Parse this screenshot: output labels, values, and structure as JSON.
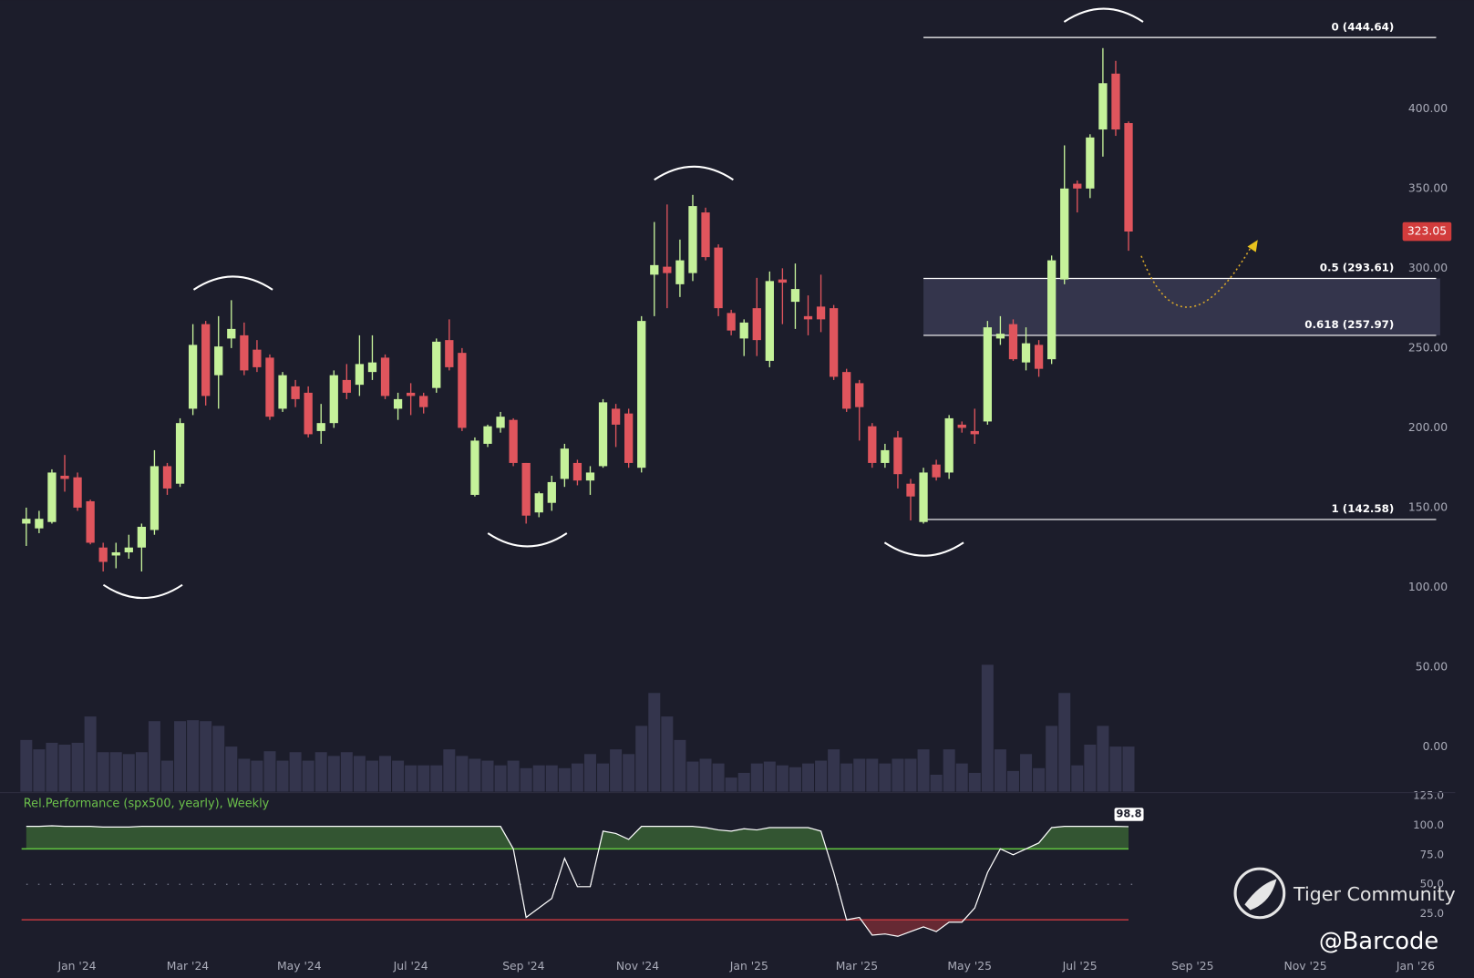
{
  "chart_data": [
    {
      "type": "candlestick",
      "xlim": [
        -2.05,
        110.9
      ],
      "ylim": [
        -28,
        468
      ],
      "yticks": [
        {
          "value": 0,
          "label": "0.00"
        },
        {
          "value": 50,
          "label": "50.00"
        },
        {
          "value": 100,
          "label": "100.00"
        },
        {
          "value": 150,
          "label": "150.00"
        },
        {
          "value": 200,
          "label": "200.00"
        },
        {
          "value": 250,
          "label": "250.00"
        },
        {
          "value": 300,
          "label": "300.00"
        },
        {
          "value": 350,
          "label": "350.00"
        },
        {
          "value": 400,
          "label": "400.00"
        }
      ],
      "up_color": "#c5f29a",
      "down_color": "#e0555d",
      "volume_color": "#34354d",
      "ohlc": [
        [
          140,
          150,
          126,
          143
        ],
        [
          137,
          148,
          134,
          143
        ],
        [
          141,
          174,
          140,
          172
        ],
        [
          170,
          183,
          160,
          168
        ],
        [
          169,
          172,
          148,
          150
        ],
        [
          154,
          155,
          127,
          128
        ],
        [
          125,
          128,
          110,
          116
        ],
        [
          120,
          128,
          112,
          122
        ],
        [
          122,
          133,
          118,
          125
        ],
        [
          125,
          140,
          110,
          138
        ],
        [
          136,
          186,
          133,
          176
        ],
        [
          176,
          178,
          158,
          162
        ],
        [
          165,
          206,
          163,
          203
        ],
        [
          212,
          265,
          208,
          252
        ],
        [
          265,
          267,
          214,
          220
        ],
        [
          233,
          270,
          212,
          251
        ],
        [
          256,
          280,
          250,
          262
        ],
        [
          258,
          266,
          233,
          236
        ],
        [
          249,
          255,
          235,
          238
        ],
        [
          244,
          246,
          205,
          207
        ],
        [
          212,
          235,
          210,
          233
        ],
        [
          226,
          230,
          213,
          218
        ],
        [
          222,
          226,
          194,
          196
        ],
        [
          198,
          215,
          190,
          203
        ],
        [
          203,
          236,
          200,
          233
        ],
        [
          230,
          240,
          218,
          222
        ],
        [
          227,
          258,
          220,
          240
        ],
        [
          235,
          258,
          230,
          241
        ],
        [
          244,
          246,
          218,
          220
        ],
        [
          212,
          222,
          205,
          218
        ],
        [
          222,
          228,
          208,
          220
        ],
        [
          220,
          222,
          209,
          213
        ],
        [
          225,
          256,
          222,
          254
        ],
        [
          255,
          268,
          236,
          238
        ],
        [
          247,
          250,
          198,
          200
        ],
        [
          158,
          194,
          157,
          192
        ],
        [
          190,
          202,
          188,
          201
        ],
        [
          200,
          210,
          197,
          207
        ],
        [
          205,
          206,
          176,
          178
        ],
        [
          178,
          178,
          140,
          145
        ],
        [
          147,
          160,
          144,
          159
        ],
        [
          153,
          170,
          148,
          166
        ],
        [
          168,
          190,
          163,
          187
        ],
        [
          178,
          180,
          164,
          167
        ],
        [
          167,
          176,
          158,
          172
        ],
        [
          176,
          218,
          175,
          216
        ],
        [
          212,
          215,
          188,
          202
        ],
        [
          209,
          212,
          175,
          178
        ],
        [
          175,
          270,
          172,
          267
        ],
        [
          296,
          329,
          270,
          302
        ],
        [
          301,
          340,
          275,
          297
        ],
        [
          290,
          318,
          282,
          305
        ],
        [
          297,
          346,
          292,
          339
        ],
        [
          335,
          338,
          305,
          307
        ],
        [
          313,
          315,
          270,
          275
        ],
        [
          272,
          274,
          258,
          261
        ],
        [
          256,
          268,
          245,
          266
        ],
        [
          275,
          294,
          245,
          255
        ],
        [
          242,
          298,
          238,
          292
        ],
        [
          293,
          300,
          265,
          291
        ],
        [
          279,
          303,
          262,
          287
        ],
        [
          270,
          283,
          258,
          268
        ],
        [
          276,
          296,
          260,
          268
        ],
        [
          275,
          277,
          230,
          232
        ],
        [
          235,
          237,
          210,
          212
        ],
        [
          228,
          230,
          192,
          213
        ],
        [
          201,
          203,
          175,
          178
        ],
        [
          178,
          190,
          175,
          186
        ],
        [
          194,
          198,
          162,
          171
        ],
        [
          165,
          168,
          142,
          157
        ],
        [
          141,
          175,
          140,
          172
        ],
        [
          177,
          180,
          167,
          169
        ],
        [
          172,
          208,
          168,
          206
        ],
        [
          202,
          204,
          197,
          200
        ],
        [
          198,
          212,
          190,
          196
        ],
        [
          204,
          267,
          202,
          263
        ],
        [
          256,
          270,
          252,
          259
        ],
        [
          265,
          268,
          242,
          243
        ],
        [
          241,
          263,
          236,
          253
        ],
        [
          252,
          255,
          232,
          237
        ],
        [
          243,
          308,
          240,
          305
        ],
        [
          293,
          377,
          290,
          350
        ],
        [
          353,
          355,
          335,
          350
        ],
        [
          350,
          384,
          344,
          382
        ],
        [
          387,
          438,
          370,
          416
        ],
        [
          422,
          430,
          383,
          387
        ],
        [
          391,
          392,
          311,
          323.05
        ]
      ],
      "volume": [
        55,
        45,
        52,
        50,
        52,
        80,
        42,
        42,
        40,
        42,
        75,
        33,
        75,
        76,
        75,
        70,
        48,
        35,
        33,
        43,
        33,
        42,
        33,
        42,
        38,
        42,
        38,
        33,
        38,
        33,
        28,
        28,
        28,
        45,
        38,
        35,
        33,
        28,
        33,
        25,
        28,
        28,
        25,
        30,
        40,
        30,
        45,
        40,
        70,
        105,
        80,
        55,
        32,
        35,
        30,
        15,
        20,
        30,
        32,
        28,
        26,
        30,
        33,
        45,
        30,
        35,
        35,
        30,
        35,
        35,
        45,
        18,
        45,
        30,
        20,
        135,
        45,
        22,
        40,
        25,
        70,
        105,
        28,
        50,
        70,
        48,
        48
      ],
      "last_price": 323.05,
      "last_price_color": "#d23c3c",
      "fib": {
        "start": 70,
        "end": 110,
        "color": "#ffffff",
        "zone_color": "#383a52",
        "levels": [
          {
            "label": "0 (444.64)",
            "value": 444.64
          },
          {
            "label": "0.5 (293.61)",
            "value": 293.61,
            "shaded": true
          },
          {
            "label": "0.618 (257.97)",
            "value": 257.97,
            "shaded": true
          },
          {
            "label": "1 (142.58)",
            "value": 142.58
          }
        ]
      }
    },
    {
      "type": "line",
      "title": "Rel.Performance (spx500, yearly), Weekly",
      "xlim": [
        -2.05,
        110.9
      ],
      "ylim": [
        -6,
        126
      ],
      "yticks": [
        {
          "value": 25,
          "label": "25.0"
        },
        {
          "value": 50,
          "label": "50.0"
        },
        {
          "value": 75,
          "label": "75.0"
        },
        {
          "value": 100,
          "label": "100.0"
        },
        {
          "value": 125,
          "label": "125.0"
        }
      ],
      "xticks": [
        {
          "value": 3.96,
          "label": "Jan '24"
        },
        {
          "value": 12.6,
          "label": "Mar '24"
        },
        {
          "value": 21.3,
          "label": "May '24"
        },
        {
          "value": 30.0,
          "label": "Jul '24"
        },
        {
          "value": 38.8,
          "label": "Sep '24"
        },
        {
          "value": 47.7,
          "label": "Nov '24"
        },
        {
          "value": 56.4,
          "label": "Jan '25"
        },
        {
          "value": 64.8,
          "label": "Mar '25"
        },
        {
          "value": 73.6,
          "label": "May '25"
        },
        {
          "value": 82.2,
          "label": "Jul '25"
        },
        {
          "value": 91.0,
          "label": "Sep '25"
        },
        {
          "value": 99.8,
          "label": "Nov '25"
        },
        {
          "value": 108.4,
          "label": "Jan '26"
        }
      ],
      "values": [
        99,
        99,
        99.5,
        99,
        99,
        99,
        98.5,
        98.5,
        98.5,
        99,
        99,
        99,
        99,
        99,
        99,
        99,
        99,
        99,
        99,
        99,
        99,
        99,
        99,
        99,
        99,
        99,
        99,
        99,
        99,
        99,
        99,
        99,
        99,
        99,
        99,
        99,
        99,
        99,
        80,
        22,
        30,
        38,
        72,
        48,
        48,
        95,
        93,
        88,
        99,
        99,
        99,
        99,
        99,
        98,
        96,
        95,
        97,
        96,
        98,
        98,
        98,
        98,
        95,
        60,
        20,
        22,
        7,
        8,
        6,
        10,
        14,
        10,
        18,
        18,
        30,
        60,
        80,
        75,
        80,
        85,
        98,
        99,
        99,
        99,
        99,
        99,
        98.8
      ],
      "color": "#ffffff",
      "upper_level": 80,
      "upper_color": "#5fbf3f",
      "middle_level": 50,
      "lower_level": 20,
      "lower_color": "#c0393f",
      "last_value": 98.8,
      "title_color": "#6cc14b"
    }
  ],
  "watermark": {
    "brand": "Tiger Community",
    "author": "@Barcode"
  }
}
